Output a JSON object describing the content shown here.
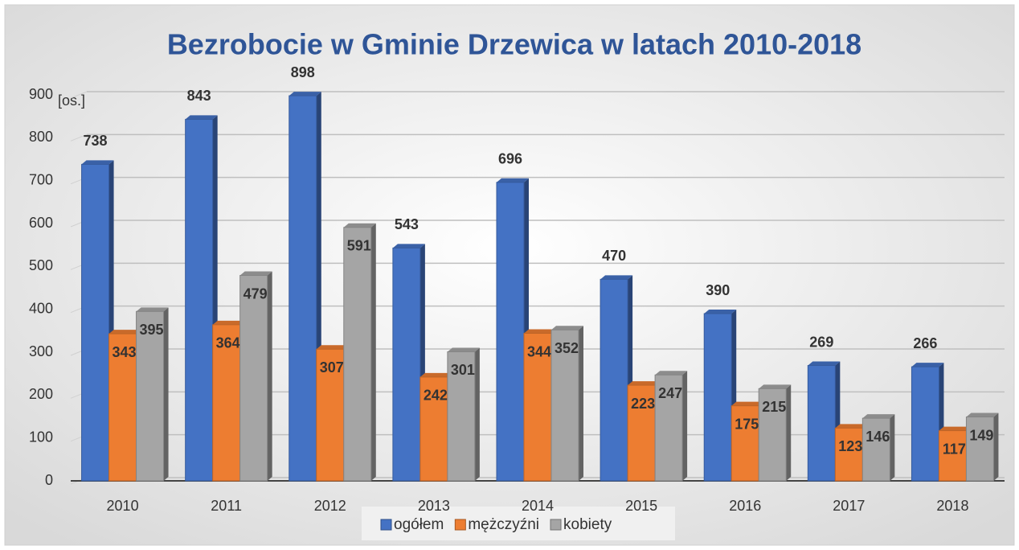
{
  "chart_data": {
    "type": "bar",
    "title": "Bezrobocie w Gminie Drzewica w latach 2010-2018",
    "y_label": "[os.]",
    "categories": [
      "2010",
      "2011",
      "2012",
      "2013",
      "2014",
      "2015",
      "2016",
      "2017",
      "2018"
    ],
    "series": [
      {
        "name": "ogółem",
        "color": "#4472c4",
        "values": [
          738,
          843,
          898,
          543,
          696,
          470,
          390,
          269,
          266
        ]
      },
      {
        "name": "mężczyźni",
        "color": "#ed7d31",
        "values": [
          343,
          364,
          307,
          242,
          344,
          223,
          175,
          123,
          117
        ]
      },
      {
        "name": "kobiety",
        "color": "#a5a5a5",
        "values": [
          395,
          479,
          591,
          301,
          352,
          247,
          215,
          146,
          149
        ]
      }
    ],
    "ylim": [
      0,
      900
    ],
    "yticks": [
      0,
      100,
      200,
      300,
      400,
      500,
      600,
      700,
      800,
      900
    ],
    "grid": true,
    "legend": "bottom"
  }
}
